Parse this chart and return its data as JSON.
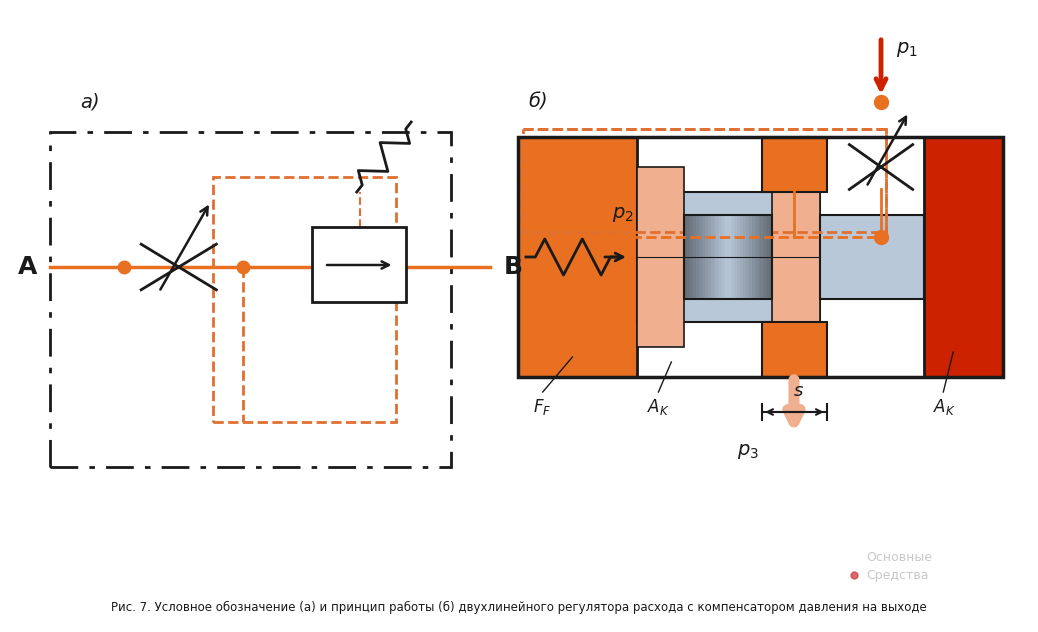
{
  "title_a": "а)",
  "title_b": "б)",
  "label_A": "A",
  "label_B": "B",
  "label_p1": "$p_1$",
  "label_p2": "$p_2$",
  "label_p3": "$p_3$",
  "label_FF": "$F_F$",
  "label_AK1": "$A_K$",
  "label_AK2": "$A_K$",
  "label_s": "$s$",
  "color_orange": "#E87020",
  "color_orange_dark": "#CC2200",
  "color_dashed": "#E07030",
  "color_black": "#1A1A1A",
  "color_gray_light": "#B8C8D8",
  "color_salmon": "#F0B090",
  "color_white": "#FFFFFF",
  "color_red": "#CC2200",
  "color_stem": "#909090"
}
